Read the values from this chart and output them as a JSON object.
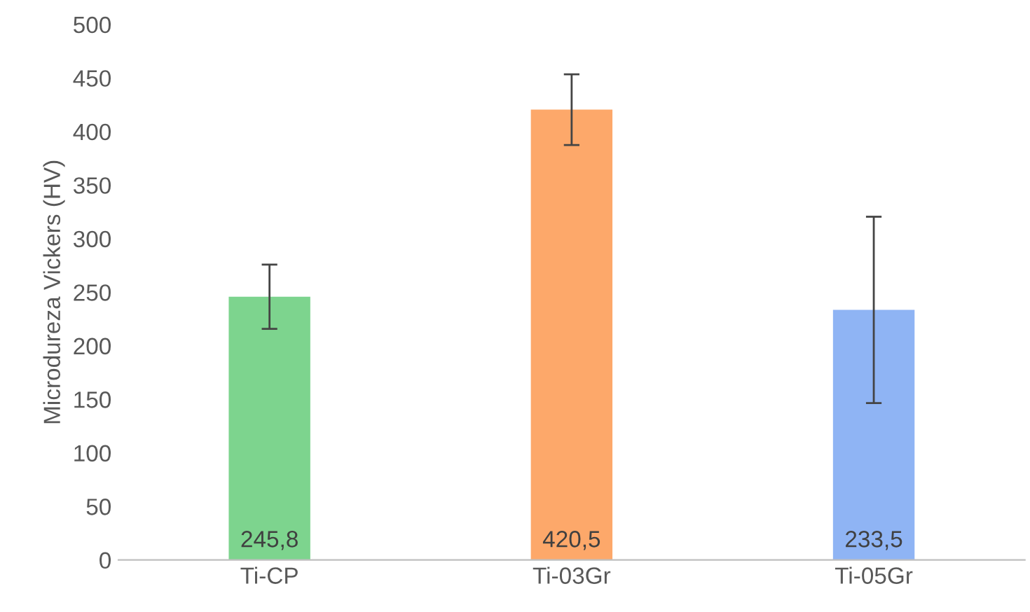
{
  "chart_data": {
    "type": "bar",
    "ylabel": "Microdureza Vickers (HV)",
    "categories": [
      "Ti-CP",
      "Ti-03Gr",
      "Ti-05Gr"
    ],
    "values": [
      245.8,
      420.5,
      233.5
    ],
    "colors": [
      "#7dd48e",
      "#fda86a",
      "#8fb4f4"
    ],
    "errors": [
      30,
      33,
      87
    ],
    "value_labels": [
      "245,8",
      "420,5",
      "233,5"
    ],
    "ylim": [
      0,
      500
    ],
    "yticks": [
      0,
      50,
      100,
      150,
      200,
      250,
      300,
      350,
      400,
      450,
      500
    ],
    "grid": false,
    "legend": false
  }
}
